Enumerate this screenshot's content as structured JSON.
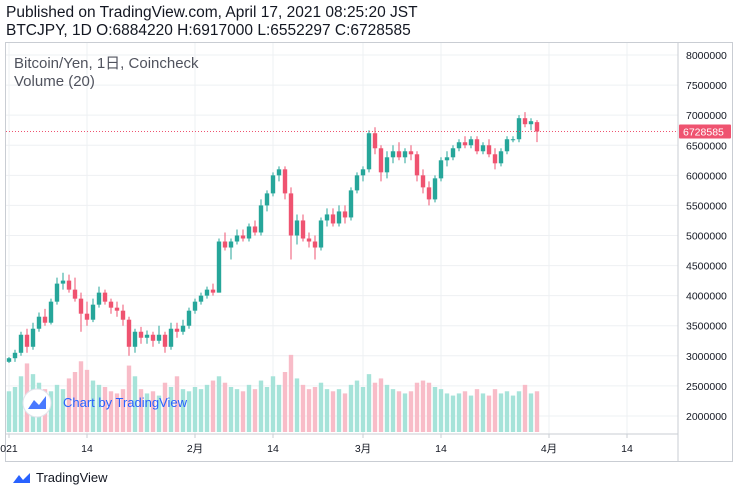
{
  "header": {
    "published": "Published on TradingView.com, April 17, 2021 08:25:20 JST",
    "symbol_line": "BTCJPY, 1D O:6884220 H:6917000 L:6552297 C:6728585"
  },
  "legend": {
    "series_title": "Bitcoin/Yen, 1日, Coincheck",
    "volume_title": "Volume (20)"
  },
  "watermark": {
    "text": "Chart by TradingView"
  },
  "footer": {
    "brand": "TradingView"
  },
  "colors": {
    "up": "#26a69a",
    "down": "#ef5370",
    "vol_up": "#a6e3d9",
    "vol_down": "#f8bcc8",
    "last_price_line": "#ef5370",
    "grid": "#eef0f3",
    "accent": "#2962ff"
  },
  "chart_data": {
    "type": "candlestick",
    "symbol": "BTCJPY",
    "ylim": [
      1700000,
      8200000
    ],
    "yticks": [
      2000000,
      2500000,
      3000000,
      3500000,
      4000000,
      4500000,
      5000000,
      5500000,
      6000000,
      6500000,
      7000000,
      7500000,
      8000000
    ],
    "x_tick_labels": [
      {
        "label": "021",
        "index": 0
      },
      {
        "label": "14",
        "index": 13
      },
      {
        "label": "2月",
        "index": 31
      },
      {
        "label": "14",
        "index": 44
      },
      {
        "label": "3月",
        "index": 59
      },
      {
        "label": "14",
        "index": 72
      },
      {
        "label": "4月",
        "index": 90
      },
      {
        "label": "14",
        "index": 103
      }
    ],
    "last_price": 6728585,
    "last_price_label": "6728585",
    "grid": true,
    "ohlcv": [
      {
        "o": 2900000,
        "h": 2980000,
        "l": 2880000,
        "c": 2960000,
        "v": 1.9
      },
      {
        "o": 2960000,
        "h": 3100000,
        "l": 2900000,
        "c": 3050000,
        "v": 2.1
      },
      {
        "o": 3050000,
        "h": 3400000,
        "l": 3000000,
        "c": 3350000,
        "v": 2.6
      },
      {
        "o": 3350000,
        "h": 3450000,
        "l": 3050000,
        "c": 3150000,
        "v": 3.2
      },
      {
        "o": 3150000,
        "h": 3550000,
        "l": 3100000,
        "c": 3450000,
        "v": 2.7
      },
      {
        "o": 3450000,
        "h": 3720000,
        "l": 3400000,
        "c": 3650000,
        "v": 2.3
      },
      {
        "o": 3650000,
        "h": 3780000,
        "l": 3500000,
        "c": 3550000,
        "v": 2.0
      },
      {
        "o": 3550000,
        "h": 3950000,
        "l": 3520000,
        "c": 3900000,
        "v": 1.9
      },
      {
        "o": 3900000,
        "h": 4300000,
        "l": 3850000,
        "c": 4200000,
        "v": 2.2
      },
      {
        "o": 4200000,
        "h": 4380000,
        "l": 4100000,
        "c": 4250000,
        "v": 2.0
      },
      {
        "o": 4250000,
        "h": 4350000,
        "l": 4050000,
        "c": 4100000,
        "v": 2.5
      },
      {
        "o": 4100000,
        "h": 4300000,
        "l": 3900000,
        "c": 3950000,
        "v": 2.8
      },
      {
        "o": 3950000,
        "h": 4050000,
        "l": 3400000,
        "c": 3700000,
        "v": 3.3
      },
      {
        "o": 3700000,
        "h": 3900000,
        "l": 3500000,
        "c": 3600000,
        "v": 2.9
      },
      {
        "o": 3600000,
        "h": 3950000,
        "l": 3560000,
        "c": 3850000,
        "v": 2.4
      },
      {
        "o": 3850000,
        "h": 4150000,
        "l": 3800000,
        "c": 4050000,
        "v": 2.2
      },
      {
        "o": 4050000,
        "h": 4100000,
        "l": 3850000,
        "c": 3900000,
        "v": 2.1
      },
      {
        "o": 3900000,
        "h": 3950000,
        "l": 3700000,
        "c": 3800000,
        "v": 1.9
      },
      {
        "o": 3800000,
        "h": 3900000,
        "l": 3650000,
        "c": 3750000,
        "v": 1.8
      },
      {
        "o": 3750000,
        "h": 3850000,
        "l": 3500000,
        "c": 3600000,
        "v": 2.0
      },
      {
        "o": 3600000,
        "h": 3650000,
        "l": 3000000,
        "c": 3150000,
        "v": 3.1
      },
      {
        "o": 3150000,
        "h": 3450000,
        "l": 3050000,
        "c": 3400000,
        "v": 2.6
      },
      {
        "o": 3400000,
        "h": 3480000,
        "l": 3200000,
        "c": 3300000,
        "v": 2.0
      },
      {
        "o": 3300000,
        "h": 3420000,
        "l": 3200000,
        "c": 3350000,
        "v": 1.8
      },
      {
        "o": 3350000,
        "h": 3400000,
        "l": 3150000,
        "c": 3250000,
        "v": 1.9
      },
      {
        "o": 3250000,
        "h": 3500000,
        "l": 3200000,
        "c": 3350000,
        "v": 1.7
      },
      {
        "o": 3350000,
        "h": 3400000,
        "l": 3050000,
        "c": 3150000,
        "v": 2.3
      },
      {
        "o": 3150000,
        "h": 3550000,
        "l": 3100000,
        "c": 3450000,
        "v": 2.1
      },
      {
        "o": 3450000,
        "h": 3550000,
        "l": 3300000,
        "c": 3400000,
        "v": 2.6
      },
      {
        "o": 3400000,
        "h": 3600000,
        "l": 3350000,
        "c": 3500000,
        "v": 2.0
      },
      {
        "o": 3500000,
        "h": 3800000,
        "l": 3450000,
        "c": 3750000,
        "v": 1.9
      },
      {
        "o": 3750000,
        "h": 3950000,
        "l": 3700000,
        "c": 3900000,
        "v": 2.1
      },
      {
        "o": 3900000,
        "h": 4050000,
        "l": 3850000,
        "c": 4000000,
        "v": 2.0
      },
      {
        "o": 4000000,
        "h": 4150000,
        "l": 3950000,
        "c": 4100000,
        "v": 2.2
      },
      {
        "o": 4100000,
        "h": 4200000,
        "l": 4000000,
        "c": 4050000,
        "v": 2.4
      },
      {
        "o": 4050000,
        "h": 4950000,
        "l": 4050000,
        "c": 4900000,
        "v": 2.6
      },
      {
        "o": 4900000,
        "h": 5050000,
        "l": 4750000,
        "c": 4800000,
        "v": 2.3
      },
      {
        "o": 4800000,
        "h": 4950000,
        "l": 4600000,
        "c": 4900000,
        "v": 2.1
      },
      {
        "o": 4900000,
        "h": 5100000,
        "l": 4850000,
        "c": 5000000,
        "v": 2.0
      },
      {
        "o": 5000000,
        "h": 5100000,
        "l": 4900000,
        "c": 4950000,
        "v": 1.9
      },
      {
        "o": 4950000,
        "h": 5200000,
        "l": 4900000,
        "c": 5150000,
        "v": 2.2
      },
      {
        "o": 5150000,
        "h": 5250000,
        "l": 5000000,
        "c": 5050000,
        "v": 2.0
      },
      {
        "o": 5050000,
        "h": 5600000,
        "l": 5000000,
        "c": 5500000,
        "v": 2.4
      },
      {
        "o": 5500000,
        "h": 5750000,
        "l": 5400000,
        "c": 5700000,
        "v": 2.1
      },
      {
        "o": 5700000,
        "h": 6050000,
        "l": 5650000,
        "c": 6000000,
        "v": 2.6
      },
      {
        "o": 6000000,
        "h": 6150000,
        "l": 5900000,
        "c": 6100000,
        "v": 2.2
      },
      {
        "o": 6100000,
        "h": 6150000,
        "l": 5600000,
        "c": 5700000,
        "v": 2.8
      },
      {
        "o": 5700000,
        "h": 5800000,
        "l": 4600000,
        "c": 5000000,
        "v": 3.6
      },
      {
        "o": 5000000,
        "h": 5350000,
        "l": 4850000,
        "c": 5250000,
        "v": 2.5
      },
      {
        "o": 5250000,
        "h": 5350000,
        "l": 4900000,
        "c": 4950000,
        "v": 2.2
      },
      {
        "o": 4950000,
        "h": 5050000,
        "l": 4800000,
        "c": 4900000,
        "v": 2.0
      },
      {
        "o": 4900000,
        "h": 5000000,
        "l": 4600000,
        "c": 4800000,
        "v": 2.1
      },
      {
        "o": 4800000,
        "h": 5300000,
        "l": 4750000,
        "c": 5250000,
        "v": 2.3
      },
      {
        "o": 5250000,
        "h": 5450000,
        "l": 5150000,
        "c": 5350000,
        "v": 2.0
      },
      {
        "o": 5350000,
        "h": 5450000,
        "l": 5150000,
        "c": 5200000,
        "v": 1.9
      },
      {
        "o": 5200000,
        "h": 5500000,
        "l": 5150000,
        "c": 5400000,
        "v": 2.0
      },
      {
        "o": 5400000,
        "h": 5500000,
        "l": 5200000,
        "c": 5300000,
        "v": 1.8
      },
      {
        "o": 5300000,
        "h": 5800000,
        "l": 5250000,
        "c": 5750000,
        "v": 2.2
      },
      {
        "o": 5750000,
        "h": 6050000,
        "l": 5700000,
        "c": 6000000,
        "v": 2.4
      },
      {
        "o": 6000000,
        "h": 6150000,
        "l": 5900000,
        "c": 6100000,
        "v": 2.1
      },
      {
        "o": 6100000,
        "h": 6750000,
        "l": 6050000,
        "c": 6700000,
        "v": 2.7
      },
      {
        "o": 6700000,
        "h": 6800000,
        "l": 6350000,
        "c": 6450000,
        "v": 2.3
      },
      {
        "o": 6450000,
        "h": 6500000,
        "l": 5900000,
        "c": 6050000,
        "v": 2.5
      },
      {
        "o": 6050000,
        "h": 6400000,
        "l": 5950000,
        "c": 6300000,
        "v": 2.2
      },
      {
        "o": 6300000,
        "h": 6500000,
        "l": 6200000,
        "c": 6400000,
        "v": 2.0
      },
      {
        "o": 6400000,
        "h": 6550000,
        "l": 6250000,
        "c": 6300000,
        "v": 1.9
      },
      {
        "o": 6300000,
        "h": 6450000,
        "l": 6200000,
        "c": 6400000,
        "v": 1.8
      },
      {
        "o": 6400000,
        "h": 6500000,
        "l": 6250000,
        "c": 6350000,
        "v": 1.9
      },
      {
        "o": 6350000,
        "h": 6400000,
        "l": 5900000,
        "c": 6000000,
        "v": 2.3
      },
      {
        "o": 6000000,
        "h": 6100000,
        "l": 5700000,
        "c": 5800000,
        "v": 2.4
      },
      {
        "o": 5800000,
        "h": 5900000,
        "l": 5500000,
        "c": 5600000,
        "v": 2.3
      },
      {
        "o": 5600000,
        "h": 6000000,
        "l": 5550000,
        "c": 5950000,
        "v": 2.1
      },
      {
        "o": 5950000,
        "h": 6300000,
        "l": 5900000,
        "c": 6250000,
        "v": 2.0
      },
      {
        "o": 6250000,
        "h": 6400000,
        "l": 6150000,
        "c": 6300000,
        "v": 1.8
      },
      {
        "o": 6300000,
        "h": 6500000,
        "l": 6250000,
        "c": 6450000,
        "v": 1.7
      },
      {
        "o": 6450000,
        "h": 6600000,
        "l": 6400000,
        "c": 6550000,
        "v": 1.8
      },
      {
        "o": 6550000,
        "h": 6650000,
        "l": 6450000,
        "c": 6500000,
        "v": 1.9
      },
      {
        "o": 6500000,
        "h": 6650000,
        "l": 6450000,
        "c": 6600000,
        "v": 1.7
      },
      {
        "o": 6600000,
        "h": 6650000,
        "l": 6350000,
        "c": 6400000,
        "v": 2.0
      },
      {
        "o": 6400000,
        "h": 6550000,
        "l": 6350000,
        "c": 6500000,
        "v": 1.8
      },
      {
        "o": 6500000,
        "h": 6600000,
        "l": 6300000,
        "c": 6350000,
        "v": 1.7
      },
      {
        "o": 6350000,
        "h": 6450000,
        "l": 6100000,
        "c": 6200000,
        "v": 2.0
      },
      {
        "o": 6200000,
        "h": 6450000,
        "l": 6150000,
        "c": 6400000,
        "v": 1.8
      },
      {
        "o": 6400000,
        "h": 6650000,
        "l": 6350000,
        "c": 6600000,
        "v": 1.9
      },
      {
        "o": 6600000,
        "h": 6650000,
        "l": 6550000,
        "c": 6600000,
        "v": 1.7
      },
      {
        "o": 6600000,
        "h": 7000000,
        "l": 6550000,
        "c": 6950000,
        "v": 1.9
      },
      {
        "o": 6950000,
        "h": 7050000,
        "l": 6800000,
        "c": 6850000,
        "v": 2.2
      },
      {
        "o": 6850000,
        "h": 6950000,
        "l": 6750000,
        "c": 6900000,
        "v": 1.8
      },
      {
        "o": 6884220,
        "h": 6917000,
        "l": 6552297,
        "c": 6728585,
        "v": 1.9
      }
    ]
  }
}
